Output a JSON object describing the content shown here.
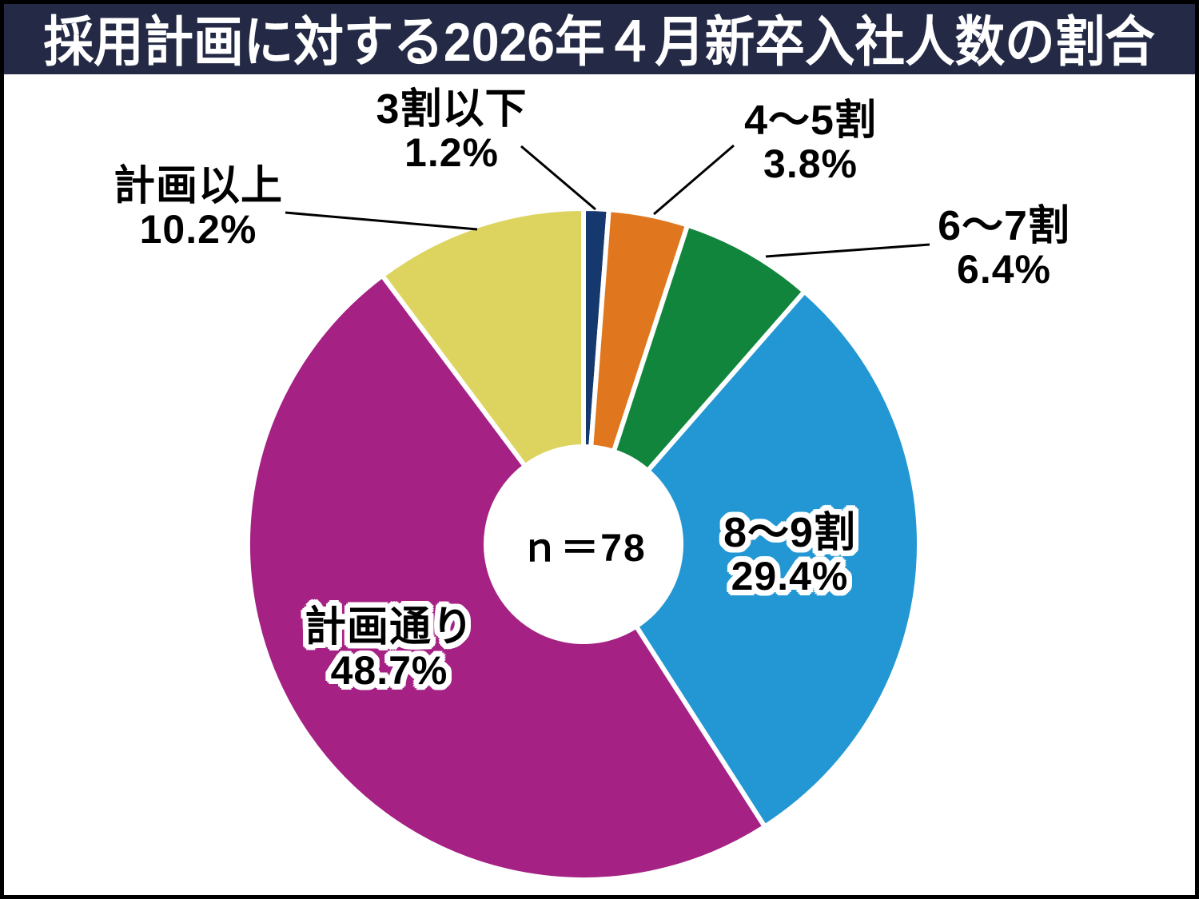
{
  "title": "採用計画に対する2026年４月新卒入社人数の割合",
  "chart_data": {
    "type": "pie",
    "subtype": "donut",
    "title": "採用計画に対する2026年４月新卒入社人数の割合",
    "center_text": "ｎ＝78",
    "sample_size": 78,
    "unit": "%",
    "start_angle_deg": 0,
    "direction": "clockwise",
    "segments": [
      {
        "name": "under-30pct",
        "label": "3割以下",
        "value": 1.2,
        "display": "1.2%",
        "color": "#15386e",
        "label_position": "outside"
      },
      {
        "name": "40-50pct",
        "label": "4～5割",
        "value": 3.8,
        "display": "3.8%",
        "color": "#e0771e",
        "label_position": "outside"
      },
      {
        "name": "60-70pct",
        "label": "6～7割",
        "value": 6.4,
        "display": "6.4%",
        "color": "#12853c",
        "label_position": "outside"
      },
      {
        "name": "80-90pct",
        "label": "8～9割",
        "value": 29.4,
        "display": "29.4%",
        "color": "#2397d3",
        "label_position": "inside"
      },
      {
        "name": "as-planned",
        "label": "計画通り",
        "value": 48.7,
        "display": "48.7%",
        "color": "#a52184",
        "label_position": "inside"
      },
      {
        "name": "above-plan",
        "label": "計画以上",
        "value": 10.2,
        "display": "10.2%",
        "color": "#ddd45f",
        "label_position": "outside"
      }
    ]
  },
  "colors": {
    "title_bar_bg": "#242a46",
    "title_text": "#ffffff",
    "frame": "#000000",
    "slice_gap_stroke": "#ffffff",
    "leader_line": "#000000",
    "label_text": "#000000"
  }
}
